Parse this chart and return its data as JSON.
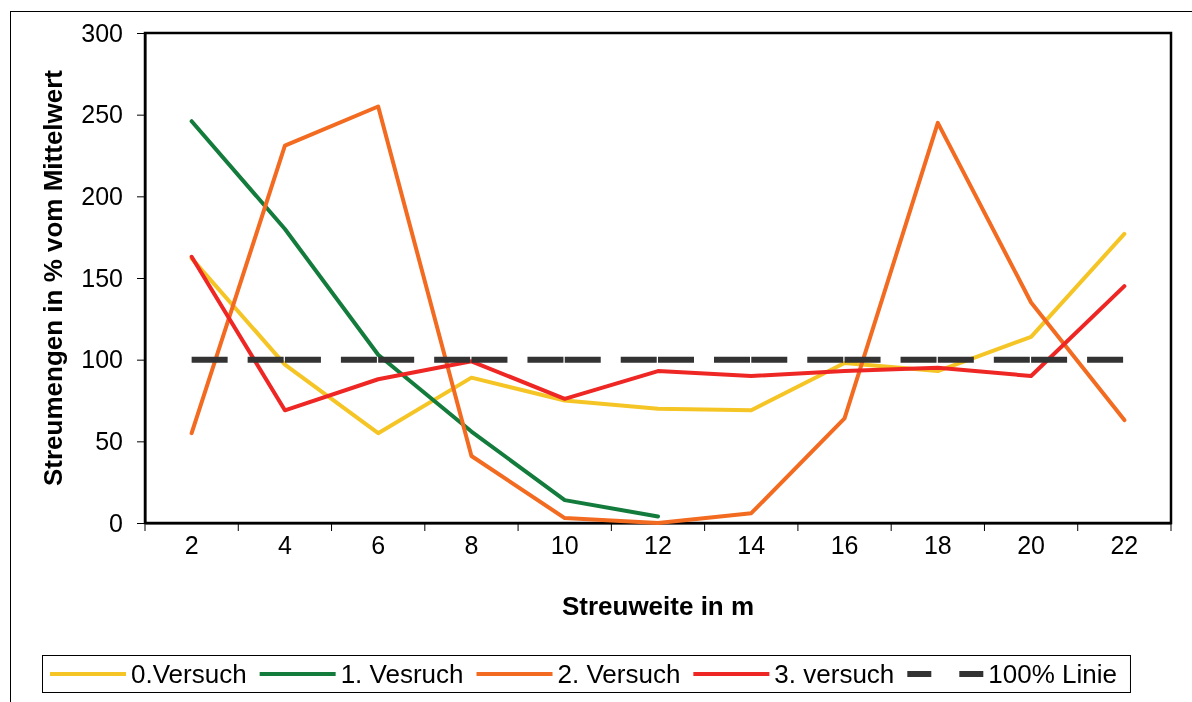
{
  "chart_data": {
    "type": "line",
    "xlabel": "Streuweite in m",
    "ylabel": "Streumengen in % vom Mittelwert",
    "categories": [
      "2",
      "4",
      "6",
      "8",
      "10",
      "12",
      "14",
      "16",
      "18",
      "20",
      "22"
    ],
    "ylim": [
      0,
      300
    ],
    "yticks": [
      0,
      50,
      100,
      150,
      200,
      250,
      300
    ],
    "legend": "bottom",
    "series": [
      {
        "name": "0.Versuch",
        "color": "#f5c526",
        "values": [
          162,
          97,
          55,
          89,
          75,
          70,
          69,
          98,
          93,
          114,
          177
        ]
      },
      {
        "name": "1. Vesruch",
        "color": "#137b3b",
        "values": [
          246,
          180,
          103,
          56,
          14,
          4,
          null,
          null,
          null,
          null,
          null
        ]
      },
      {
        "name": "2. Versuch",
        "color": "#f26b21",
        "values": [
          55,
          231,
          255,
          41,
          3,
          0,
          6,
          64,
          245,
          135,
          63
        ]
      },
      {
        "name": "3. versuch",
        "color": "#ee2724",
        "values": [
          163,
          69,
          88,
          99,
          76,
          93,
          90,
          93,
          95,
          90,
          145
        ]
      },
      {
        "name": "100% Linie",
        "color": "#333333",
        "line_style": "dashed",
        "values": [
          100,
          100,
          100,
          100,
          100,
          100,
          100,
          100,
          100,
          100,
          100
        ]
      }
    ]
  }
}
